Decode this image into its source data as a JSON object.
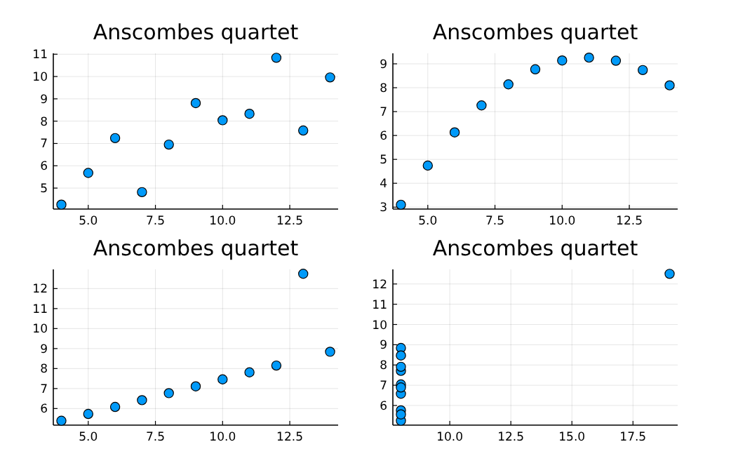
{
  "chart_data": [
    {
      "type": "scatter",
      "title": "Anscombes quartet",
      "x": [
        10,
        8,
        13,
        9,
        11,
        14,
        6,
        4,
        12,
        7,
        5
      ],
      "series": [
        {
          "color": "#009af9",
          "values": [
            8.04,
            6.95,
            7.58,
            8.81,
            8.33,
            9.96,
            7.24,
            4.26,
            10.84,
            4.82,
            5.68
          ]
        }
      ],
      "xlim": [
        3.7,
        14.3
      ],
      "ylim": [
        4.06,
        11.04
      ],
      "xticks": [
        {
          "value": 5,
          "label": "5.0"
        },
        {
          "value": 7.5,
          "label": "7.5"
        },
        {
          "value": 10,
          "label": "10.0"
        },
        {
          "value": 12.5,
          "label": "12.5"
        }
      ],
      "yticks": [
        5,
        6,
        7,
        8,
        9,
        10,
        11
      ],
      "grid": true,
      "marker": "circle"
    },
    {
      "type": "scatter",
      "title": "Anscombes quartet",
      "x": [
        10,
        8,
        13,
        9,
        11,
        14,
        6,
        4,
        12,
        7,
        5
      ],
      "series": [
        {
          "color": "#009af9",
          "values": [
            9.14,
            8.14,
            8.74,
            8.77,
            9.26,
            8.1,
            6.13,
            3.1,
            9.13,
            7.26,
            4.74
          ]
        }
      ],
      "xlim": [
        3.7,
        14.3
      ],
      "ylim": [
        2.92,
        9.44
      ],
      "xticks": [
        {
          "value": 5,
          "label": "5.0"
        },
        {
          "value": 7.5,
          "label": "7.5"
        },
        {
          "value": 10,
          "label": "10.0"
        },
        {
          "value": 12.5,
          "label": "12.5"
        }
      ],
      "yticks": [
        3,
        4,
        5,
        6,
        7,
        8,
        9
      ],
      "grid": true,
      "marker": "circle"
    },
    {
      "type": "scatter",
      "title": "Anscombes quartet",
      "x": [
        10,
        8,
        13,
        9,
        11,
        14,
        6,
        4,
        12,
        7,
        5
      ],
      "series": [
        {
          "color": "#009af9",
          "values": [
            7.46,
            6.77,
            12.74,
            7.11,
            7.81,
            8.84,
            6.08,
            5.39,
            8.15,
            6.42,
            5.73
          ]
        }
      ],
      "xlim": [
        3.7,
        14.3
      ],
      "ylim": [
        5.17,
        12.96
      ],
      "xticks": [
        {
          "value": 5,
          "label": "5.0"
        },
        {
          "value": 7.5,
          "label": "7.5"
        },
        {
          "value": 10,
          "label": "10.0"
        },
        {
          "value": 12.5,
          "label": "12.5"
        }
      ],
      "yticks": [
        6,
        7,
        8,
        9,
        10,
        11,
        12
      ],
      "grid": true,
      "marker": "circle"
    },
    {
      "type": "scatter",
      "title": "Anscombes quartet",
      "x": [
        8,
        8,
        8,
        8,
        8,
        8,
        8,
        19,
        8,
        8,
        8
      ],
      "series": [
        {
          "color": "#009af9",
          "values": [
            6.58,
            5.76,
            7.71,
            8.84,
            8.47,
            7.04,
            5.25,
            12.5,
            5.56,
            7.91,
            6.89
          ]
        }
      ],
      "xlim": [
        7.67,
        19.33
      ],
      "ylim": [
        5.03,
        12.72
      ],
      "xticks": [
        {
          "value": 10,
          "label": "10.0"
        },
        {
          "value": 12.5,
          "label": "12.5"
        },
        {
          "value": 15,
          "label": "15.0"
        },
        {
          "value": 17.5,
          "label": "17.5"
        }
      ],
      "yticks": [
        6,
        7,
        8,
        9,
        10,
        11,
        12
      ],
      "grid": true,
      "marker": "circle"
    }
  ]
}
